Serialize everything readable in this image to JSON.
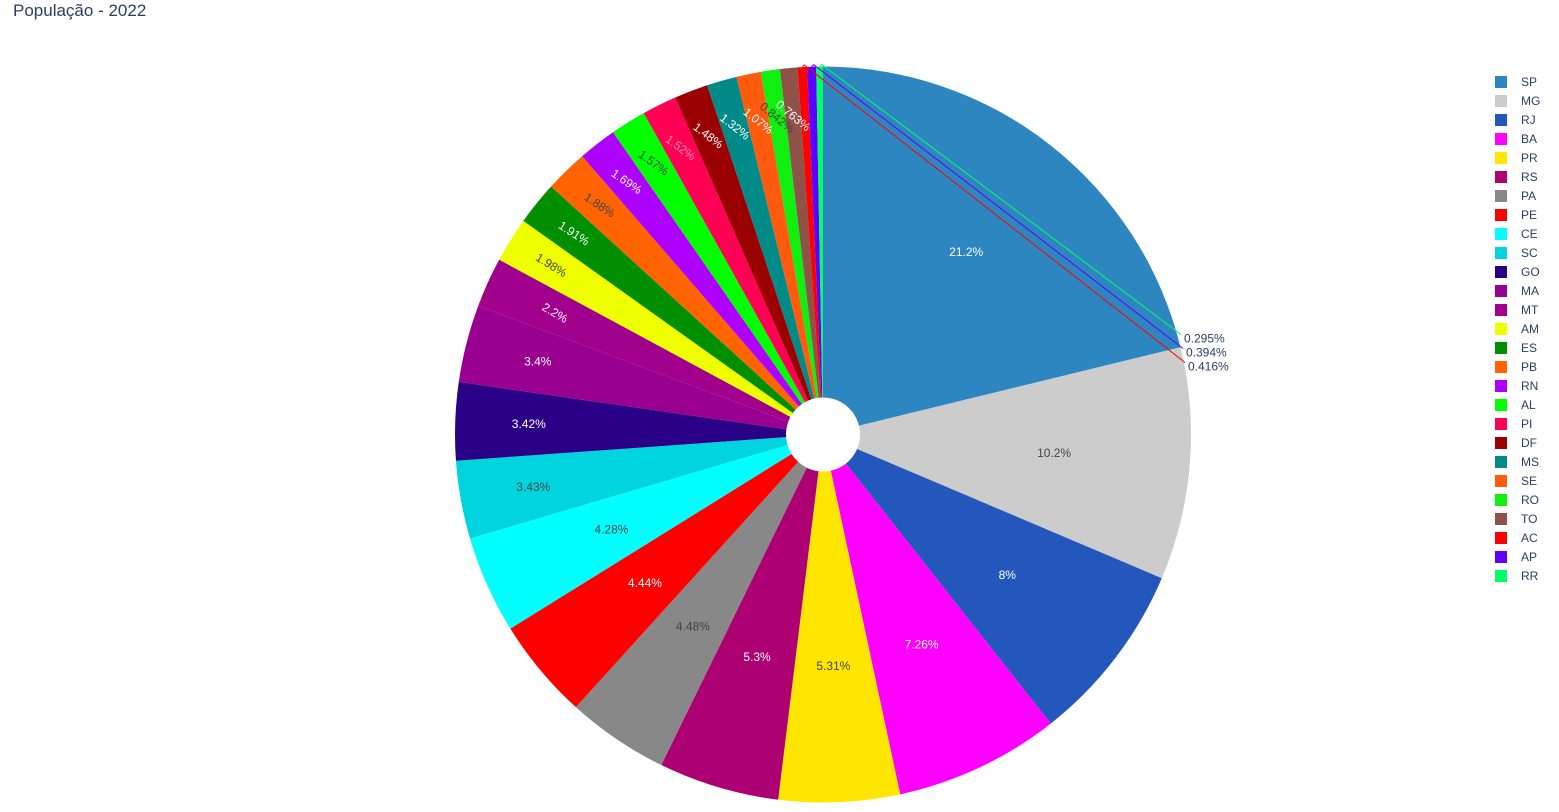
{
  "title": "População - 2022",
  "chart_data": {
    "type": "pie",
    "title": "População - 2022",
    "hole": true,
    "legend_position": "right",
    "slices": [
      {
        "label": "SP",
        "percent": 21.2,
        "text": "21.2%",
        "color": "#2e86c1",
        "text_color": "#ffffff"
      },
      {
        "label": "MG",
        "percent": 10.2,
        "text": "10.2%",
        "color": "#cccccc",
        "text_color": "#444444"
      },
      {
        "label": "RJ",
        "percent": 8.0,
        "text": "8%",
        "color": "#2357bb",
        "text_color": "#ffffff"
      },
      {
        "label": "BA",
        "percent": 7.26,
        "text": "7.26%",
        "color": "#ff00ff",
        "text_color": "#ffffff"
      },
      {
        "label": "PR",
        "percent": 5.31,
        "text": "5.31%",
        "color": "#ffe600",
        "text_color": "#444444"
      },
      {
        "label": "RS",
        "percent": 5.3,
        "text": "5.3%",
        "color": "#ad0073",
        "text_color": "#ffffff"
      },
      {
        "label": "PA",
        "percent": 4.48,
        "text": "4.48%",
        "color": "#888888",
        "text_color": "#444444"
      },
      {
        "label": "PE",
        "percent": 4.44,
        "text": "4.44%",
        "color": "#ff0000",
        "text_color": "#ffffff"
      },
      {
        "label": "CE",
        "percent": 4.28,
        "text": "4.28%",
        "color": "#00ffff",
        "text_color": "#444444"
      },
      {
        "label": "SC",
        "percent": 3.43,
        "text": "3.43%",
        "color": "#00d4df",
        "text_color": "#444444"
      },
      {
        "label": "GO",
        "percent": 3.42,
        "text": "3.42%",
        "color": "#2a0086",
        "text_color": "#ffffff"
      },
      {
        "label": "MA",
        "percent": 3.4,
        "text": "3.4%",
        "color": "#990090",
        "text_color": "#ffffff"
      },
      {
        "label": "MT",
        "percent": 2.2,
        "text": "2.2%",
        "color": "#a1008c",
        "text_color": "#ffffff"
      },
      {
        "label": "AM",
        "percent": 1.98,
        "text": "1.98%",
        "color": "#f0ff00",
        "text_color": "#444444"
      },
      {
        "label": "ES",
        "percent": 1.91,
        "text": "1.91%",
        "color": "#008f00",
        "text_color": "#ffffff"
      },
      {
        "label": "PB",
        "percent": 1.88,
        "text": "1.88%",
        "color": "#ff6400",
        "text_color": "#444444"
      },
      {
        "label": "RN",
        "percent": 1.69,
        "text": "1.69%",
        "color": "#ad00ff",
        "text_color": "#ffffff"
      },
      {
        "label": "AL",
        "percent": 1.57,
        "text": "1.57%",
        "color": "#00ff00",
        "text_color": "#444444"
      },
      {
        "label": "PI",
        "percent": 1.52,
        "text": "1.52%",
        "color": "#ff0055",
        "text_color": "#ff8fb0"
      },
      {
        "label": "DF",
        "percent": 1.48,
        "text": "1.48%",
        "color": "#9b0000",
        "text_color": "#ffffff"
      },
      {
        "label": "MS",
        "percent": 1.32,
        "text": "1.32%",
        "color": "#008a88",
        "text_color": "#ffffff"
      },
      {
        "label": "SE",
        "percent": 1.07,
        "text": "1.07%",
        "color": "#ff5a0e",
        "text_color": "#ffffff"
      },
      {
        "label": "RO",
        "percent": 0.842,
        "text": "0.842%",
        "color": "#10f010",
        "text_color": "#444444"
      },
      {
        "label": "TO",
        "percent": 0.763,
        "text": "0.763%",
        "color": "#8e5248",
        "text_color": "#ffffff"
      },
      {
        "label": "AC",
        "percent": 0.416,
        "text": "0.416%",
        "color": "#ff0000",
        "text_color": "#2a3f5f"
      },
      {
        "label": "AP",
        "percent": 0.394,
        "text": "0.394%",
        "color": "#5d00ff",
        "text_color": "#2a3f5f"
      },
      {
        "label": "RR",
        "percent": 0.295,
        "text": "0.295%",
        "color": "#00ff66",
        "text_color": "#2a3f5f"
      }
    ]
  }
}
